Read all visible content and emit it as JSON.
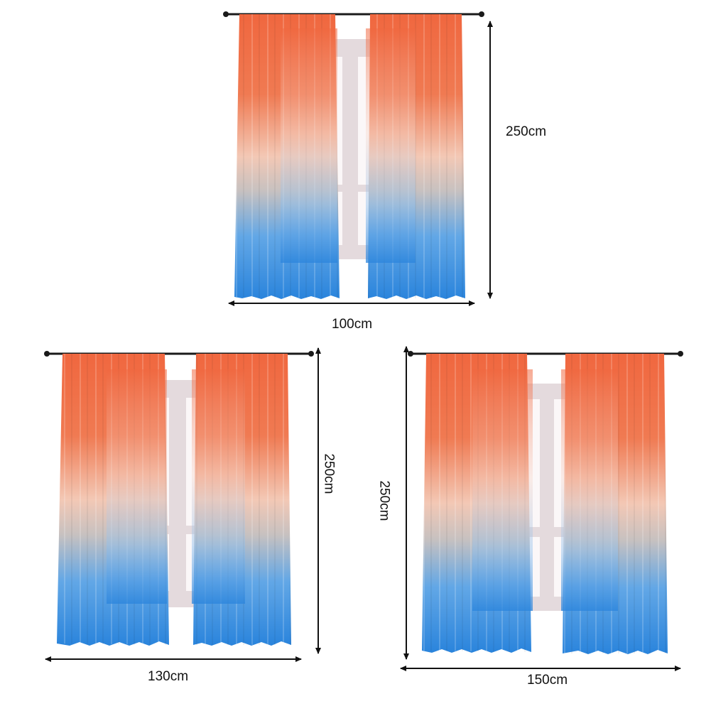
{
  "product": {
    "panels": [
      {
        "id": "size-100",
        "height_label": "250cm",
        "width_label": "100cm"
      },
      {
        "id": "size-130",
        "height_label": "250cm",
        "width_label": "130cm"
      },
      {
        "id": "size-150",
        "height_label": "250cm",
        "width_label": "150cm"
      }
    ]
  },
  "colors": {
    "curtain_top": "#f0673f",
    "curtain_mid": "#f2c9b6",
    "curtain_bottom": "#2c86dc",
    "rod": "#1a1a1a",
    "window_frame": "#e3dadd",
    "window_glass": "#fbf7f8",
    "arrow": "#111111"
  }
}
